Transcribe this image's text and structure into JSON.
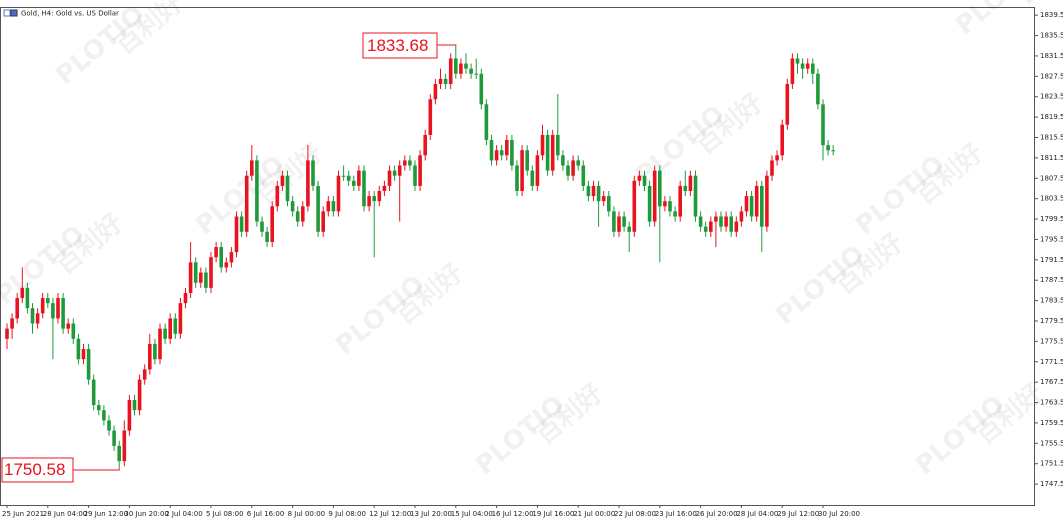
{
  "chart_data": {
    "type": "candlestick",
    "title": "Gold, H4: Gold vs. US Dollar",
    "watermark": [
      "PLOTIO",
      "百利好"
    ],
    "max_label": 1833.68,
    "min_label": 1750.58,
    "up_color": "#e8131f",
    "down_color": "#1e9a3a",
    "ylim": [
      1743.4,
      1840.9
    ],
    "yticks": [
      {
        "value": 1839.5,
        "label": "1839.50"
      },
      {
        "value": 1835.5,
        "label": "1835.50"
      },
      {
        "value": 1831.5,
        "label": "1831.50"
      },
      {
        "value": 1827.5,
        "label": "1827.50"
      },
      {
        "value": 1823.5,
        "label": "1823.50"
      },
      {
        "value": 1819.5,
        "label": "1819.50"
      },
      {
        "value": 1815.5,
        "label": "1815.50"
      },
      {
        "value": 1811.5,
        "label": "1811.50"
      },
      {
        "value": 1807.5,
        "label": "1807.50"
      },
      {
        "value": 1803.5,
        "label": "1803.50"
      },
      {
        "value": 1799.5,
        "label": "1799.50"
      },
      {
        "value": 1795.5,
        "label": "1795.50"
      },
      {
        "value": 1791.5,
        "label": "1791.50"
      },
      {
        "value": 1787.5,
        "label": "1787.50"
      },
      {
        "value": 1783.5,
        "label": "1783.50"
      },
      {
        "value": 1779.5,
        "label": "1779.50"
      },
      {
        "value": 1775.5,
        "label": "1775.50"
      },
      {
        "value": 1771.5,
        "label": "1771.50"
      },
      {
        "value": 1767.5,
        "label": "1767.50"
      },
      {
        "value": 1763.5,
        "label": "1763.50"
      },
      {
        "value": 1759.5,
        "label": "1759.50"
      },
      {
        "value": 1755.5,
        "label": "1755.50"
      },
      {
        "value": 1751.5,
        "label": "1751.50"
      },
      {
        "value": 1747.5,
        "label": "1747.50"
      }
    ],
    "categories": [
      "25 Jun 2021",
      null,
      null,
      null,
      null,
      null,
      null,
      null,
      "28 Jun 04:00",
      null,
      null,
      null,
      null,
      null,
      null,
      null,
      "29 Jun 12:00",
      null,
      null,
      null,
      null,
      null,
      null,
      null,
      "30 Jun 20:00",
      null,
      null,
      null,
      null,
      null,
      null,
      null,
      "2 Jul 04:00",
      null,
      null,
      null,
      null,
      null,
      null,
      null,
      "5 Jul 08:00",
      null,
      null,
      null,
      null,
      null,
      null,
      null,
      "6 Jul 16:00",
      null,
      null,
      null,
      null,
      null,
      null,
      null,
      "8 Jul 00:00",
      null,
      null,
      null,
      null,
      null,
      null,
      null,
      "9 Jul 08:00",
      null,
      null,
      null,
      null,
      null,
      null,
      null,
      "12 Jul 12:00",
      null,
      null,
      null,
      null,
      null,
      null,
      null,
      "13 Jul 20:00",
      null,
      null,
      null,
      null,
      null,
      null,
      null,
      "15 Jul 04:00",
      null,
      null,
      null,
      null,
      null,
      null,
      null,
      "16 Jul 12:00",
      null,
      null,
      null,
      null,
      null,
      null,
      null,
      "19 Jul 16:00",
      null,
      null,
      null,
      null,
      null,
      null,
      null,
      "21 Jul 00:00",
      null,
      null,
      null,
      null,
      null,
      null,
      null,
      "22 Jul 08:00",
      null,
      null,
      null,
      null,
      null,
      null,
      null,
      "23 Jul 16:00",
      null,
      null,
      null,
      null,
      null,
      null,
      null,
      "26 Jul 20:00",
      null,
      null,
      null,
      null,
      null,
      null,
      null,
      "28 Jul 04:00",
      null,
      null,
      null,
      null,
      null,
      null,
      null,
      "29 Jul 12:00",
      null,
      null,
      null,
      null,
      null,
      null,
      null,
      "30 Jul 20:00",
      null,
      null
    ],
    "candles": [
      [
        1776,
        1779,
        1774,
        1778
      ],
      [
        1778,
        1781,
        1776,
        1780
      ],
      [
        1780,
        1785,
        1779,
        1784
      ],
      [
        1784,
        1790,
        1783,
        1786
      ],
      [
        1786,
        1787,
        1781,
        1782
      ],
      [
        1782,
        1783,
        1777,
        1779
      ],
      [
        1779,
        1782,
        1778,
        1781
      ],
      [
        1781,
        1785,
        1780,
        1784
      ],
      [
        1784,
        1785,
        1782,
        1783
      ],
      [
        1783,
        1784,
        1772,
        1780
      ],
      [
        1780,
        1785,
        1779,
        1784
      ],
      [
        1784,
        1785,
        1777,
        1778
      ],
      [
        1778,
        1780,
        1777,
        1779
      ],
      [
        1779,
        1780,
        1775,
        1776
      ],
      [
        1776,
        1777,
        1771,
        1772
      ],
      [
        1772,
        1775,
        1771,
        1774
      ],
      [
        1774,
        1775,
        1767,
        1768
      ],
      [
        1768,
        1769,
        1762,
        1763
      ],
      [
        1763,
        1764,
        1761,
        1762
      ],
      [
        1762,
        1763,
        1759,
        1760
      ],
      [
        1760,
        1761,
        1757,
        1758
      ],
      [
        1758,
        1759,
        1754,
        1755
      ],
      [
        1755,
        1756,
        1750.58,
        1752
      ],
      [
        1752,
        1760,
        1751,
        1758
      ],
      [
        1758,
        1765,
        1757,
        1764
      ],
      [
        1764,
        1765,
        1761,
        1762
      ],
      [
        1762,
        1769,
        1761,
        1768
      ],
      [
        1768,
        1771,
        1767,
        1770
      ],
      [
        1770,
        1777,
        1769,
        1775
      ],
      [
        1775,
        1776,
        1771,
        1772
      ],
      [
        1772,
        1779,
        1771,
        1778
      ],
      [
        1778,
        1779,
        1775,
        1776
      ],
      [
        1776,
        1781,
        1775,
        1780
      ],
      [
        1780,
        1781,
        1776,
        1777
      ],
      [
        1777,
        1784,
        1776,
        1783
      ],
      [
        1783,
        1786,
        1782,
        1785
      ],
      [
        1785,
        1795,
        1784,
        1791
      ],
      [
        1791,
        1792,
        1786,
        1787
      ],
      [
        1787,
        1790,
        1786,
        1789
      ],
      [
        1789,
        1790,
        1785,
        1786
      ],
      [
        1786,
        1793,
        1785,
        1792
      ],
      [
        1792,
        1795,
        1791,
        1794
      ],
      [
        1794,
        1795,
        1789,
        1790
      ],
      [
        1790,
        1792,
        1789,
        1791
      ],
      [
        1791,
        1794,
        1790,
        1793
      ],
      [
        1793,
        1801,
        1792,
        1800
      ],
      [
        1800,
        1801,
        1796,
        1797
      ],
      [
        1797,
        1809,
        1796,
        1808
      ],
      [
        1808,
        1814,
        1807,
        1811
      ],
      [
        1811,
        1812,
        1798,
        1799
      ],
      [
        1799,
        1800,
        1796,
        1797
      ],
      [
        1797,
        1798,
        1794,
        1795
      ],
      [
        1795,
        1803,
        1794,
        1802
      ],
      [
        1802,
        1807,
        1801,
        1806
      ],
      [
        1806,
        1809,
        1805,
        1808
      ],
      [
        1808,
        1809,
        1802,
        1803
      ],
      [
        1803,
        1804,
        1800,
        1801
      ],
      [
        1801,
        1802,
        1798,
        1799
      ],
      [
        1799,
        1803,
        1798,
        1802
      ],
      [
        1802,
        1814,
        1801,
        1811
      ],
      [
        1811,
        1812,
        1805,
        1806
      ],
      [
        1806,
        1807,
        1796,
        1797
      ],
      [
        1797,
        1802,
        1796,
        1801
      ],
      [
        1801,
        1804,
        1800,
        1803
      ],
      [
        1803,
        1804,
        1800,
        1801
      ],
      [
        1801,
        1809,
        1800,
        1808
      ],
      [
        1808,
        1810,
        1807,
        1808
      ],
      [
        1808,
        1809,
        1806,
        1807
      ],
      [
        1807,
        1808,
        1805,
        1806
      ],
      [
        1806,
        1810,
        1805,
        1809
      ],
      [
        1809,
        1810,
        1801,
        1802
      ],
      [
        1802,
        1805,
        1801,
        1804
      ],
      [
        1804,
        1805,
        1792,
        1803
      ],
      [
        1803,
        1806,
        1802,
        1805
      ],
      [
        1805,
        1807,
        1804,
        1806
      ],
      [
        1806,
        1810,
        1805,
        1809
      ],
      [
        1809,
        1810,
        1807,
        1808
      ],
      [
        1808,
        1811,
        1799,
        1810
      ],
      [
        1810,
        1812,
        1809,
        1811
      ],
      [
        1811,
        1812,
        1809,
        1810
      ],
      [
        1810,
        1811,
        1805,
        1806
      ],
      [
        1806,
        1813,
        1805,
        1812
      ],
      [
        1812,
        1817,
        1811,
        1816
      ],
      [
        1816,
        1824,
        1815,
        1823
      ],
      [
        1823,
        1827,
        1822,
        1826
      ],
      [
        1826,
        1829,
        1825,
        1827
      ],
      [
        1827,
        1828,
        1825,
        1826
      ],
      [
        1826,
        1832,
        1825,
        1831
      ],
      [
        1831,
        1833.68,
        1827,
        1828
      ],
      [
        1828,
        1831,
        1827,
        1830
      ],
      [
        1830,
        1832,
        1828,
        1829
      ],
      [
        1829,
        1830,
        1827,
        1828
      ],
      [
        1828,
        1831,
        1827,
        1828
      ],
      [
        1828,
        1829,
        1821,
        1822
      ],
      [
        1822,
        1823,
        1814,
        1815
      ],
      [
        1815,
        1816,
        1810,
        1811
      ],
      [
        1811,
        1814,
        1810,
        1813
      ],
      [
        1813,
        1814,
        1811,
        1812
      ],
      [
        1812,
        1816,
        1811,
        1815
      ],
      [
        1815,
        1816,
        1809,
        1810
      ],
      [
        1810,
        1811,
        1804,
        1805
      ],
      [
        1805,
        1814,
        1804,
        1813
      ],
      [
        1813,
        1814,
        1808,
        1809
      ],
      [
        1809,
        1810,
        1805,
        1806
      ],
      [
        1806,
        1813,
        1805,
        1812
      ],
      [
        1812,
        1818,
        1811,
        1816
      ],
      [
        1816,
        1817,
        1808,
        1809
      ],
      [
        1809,
        1817,
        1808,
        1816
      ],
      [
        1816,
        1824,
        1811,
        1812
      ],
      [
        1812,
        1813,
        1809,
        1810
      ],
      [
        1810,
        1811,
        1807,
        1808
      ],
      [
        1808,
        1812,
        1807,
        1811
      ],
      [
        1811,
        1812,
        1809,
        1810
      ],
      [
        1810,
        1811,
        1805,
        1806
      ],
      [
        1806,
        1807,
        1803,
        1804
      ],
      [
        1804,
        1807,
        1803,
        1806
      ],
      [
        1806,
        1807,
        1798,
        1803
      ],
      [
        1803,
        1805,
        1802,
        1804
      ],
      [
        1804,
        1805,
        1800,
        1801
      ],
      [
        1801,
        1802,
        1796,
        1797
      ],
      [
        1797,
        1801,
        1796,
        1800
      ],
      [
        1800,
        1801,
        1797,
        1798
      ],
      [
        1798,
        1799,
        1793,
        1797
      ],
      [
        1797,
        1808,
        1796,
        1807
      ],
      [
        1807,
        1809,
        1806,
        1808
      ],
      [
        1808,
        1809,
        1805,
        1806
      ],
      [
        1806,
        1807,
        1798,
        1799
      ],
      [
        1799,
        1810,
        1798,
        1809
      ],
      [
        1809,
        1810,
        1791,
        1802
      ],
      [
        1802,
        1804,
        1801,
        1803
      ],
      [
        1803,
        1804,
        1800,
        1801
      ],
      [
        1801,
        1802,
        1799,
        1800
      ],
      [
        1800,
        1807,
        1799,
        1806
      ],
      [
        1806,
        1809,
        1804,
        1805
      ],
      [
        1805,
        1809,
        1804,
        1808
      ],
      [
        1808,
        1809,
        1799,
        1800
      ],
      [
        1800,
        1801,
        1797,
        1798
      ],
      [
        1798,
        1799,
        1796,
        1797
      ],
      [
        1797,
        1800,
        1796,
        1799
      ],
      [
        1799,
        1801,
        1794,
        1800
      ],
      [
        1800,
        1801,
        1797,
        1798
      ],
      [
        1798,
        1801,
        1797,
        1800
      ],
      [
        1800,
        1801,
        1796,
        1797
      ],
      [
        1797,
        1800,
        1796,
        1799
      ],
      [
        1799,
        1802,
        1798,
        1801
      ],
      [
        1801,
        1805,
        1800,
        1804
      ],
      [
        1804,
        1805,
        1799,
        1800
      ],
      [
        1800,
        1807,
        1799,
        1806
      ],
      [
        1806,
        1807,
        1793,
        1798
      ],
      [
        1798,
        1809,
        1797,
        1808
      ],
      [
        1808,
        1812,
        1807,
        1811
      ],
      [
        1811,
        1813,
        1810,
        1812
      ],
      [
        1812,
        1819,
        1811,
        1818
      ],
      [
        1818,
        1827,
        1817,
        1826
      ],
      [
        1826,
        1832,
        1825,
        1831
      ],
      [
        1831,
        1832,
        1828,
        1830
      ],
      [
        1830,
        1831,
        1827,
        1829
      ],
      [
        1829,
        1831,
        1828,
        1830
      ],
      [
        1830,
        1831,
        1826,
        1828
      ],
      [
        1828,
        1829,
        1821,
        1822
      ],
      [
        1822,
        1823,
        1811,
        1814
      ],
      [
        1814,
        1815,
        1812,
        1813
      ],
      [
        1813,
        1814,
        1812,
        1813
      ]
    ]
  }
}
